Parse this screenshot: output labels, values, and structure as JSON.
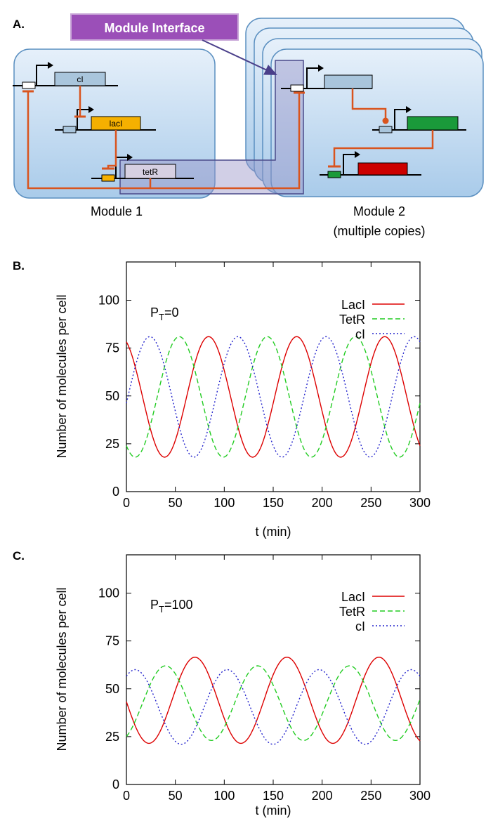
{
  "panels": {
    "a": {
      "label": "A.",
      "module_interface_label": "Module Interface",
      "module1": {
        "title": "Module 1",
        "genes": [
          "cI",
          "lacI",
          "tetR"
        ]
      },
      "module2": {
        "title": "Module 2",
        "subtitle": "(multiple copies)"
      }
    },
    "b": {
      "label": "B.",
      "annotation": "P",
      "annotation_sub": "T",
      "annotation_value": "=0"
    },
    "c": {
      "label": "C.",
      "annotation": "P",
      "annotation_sub": "T",
      "annotation_value": "=100"
    }
  },
  "colors": {
    "module_box": "#bcd8f0",
    "module_border": "#5a8fc0",
    "interface_purple": "#9b4fb8",
    "repression_orange": "#d9541e",
    "laci": "#dd0000",
    "tetr": "#22cc22",
    "ci": "#2222cc",
    "gene_ci": "#a9c5dc",
    "gene_laci": "#f5b000",
    "gene_tetr": "#d6d0e2",
    "gene_green": "#1a9a3a",
    "gene_red": "#cc0000"
  },
  "chart_data": [
    {
      "type": "line",
      "panel": "B",
      "xlabel": "t (min)",
      "ylabel": "Number of molecules per cell",
      "xlim": [
        0,
        300
      ],
      "ylim": [
        0,
        120
      ],
      "xticks": [
        0,
        50,
        100,
        150,
        200,
        250,
        300
      ],
      "yticks": [
        0,
        25,
        50,
        75,
        100
      ],
      "legend": "top-right",
      "series": [
        {
          "name": "LacI",
          "style": "solid",
          "mean": 49.5,
          "amplitude": 31.5,
          "period": 90,
          "peak_t": 84,
          "t0": 0
        },
        {
          "name": "TetR",
          "style": "dashed",
          "mean": 49.5,
          "amplitude": 31.5,
          "period": 90,
          "peak_t": 54,
          "t0": 0
        },
        {
          "name": "cI",
          "style": "dotted",
          "mean": 49.5,
          "amplitude": 31.5,
          "period": 90,
          "peak_t": 24,
          "t0": 0
        }
      ]
    },
    {
      "type": "line",
      "panel": "C",
      "xlabel": "t (min)",
      "ylabel": "Number of molecules per cell",
      "xlim": [
        0,
        300
      ],
      "ylim": [
        0,
        120
      ],
      "xticks": [
        0,
        50,
        100,
        150,
        200,
        250,
        300
      ],
      "yticks": [
        0,
        25,
        50,
        75,
        100
      ],
      "legend": "top-right",
      "series": [
        {
          "name": "LacI",
          "style": "solid",
          "mean": 44,
          "amplitude": 22.5,
          "period": 94,
          "peak_t": 70,
          "t0": 0
        },
        {
          "name": "TetR",
          "style": "dashed",
          "mean": 42.5,
          "amplitude": 19.5,
          "period": 94,
          "peak_t": 40,
          "t0": 0
        },
        {
          "name": "cI",
          "style": "dotted",
          "mean": 40.5,
          "amplitude": 19.5,
          "period": 94,
          "peak_t": 9,
          "t0": 0
        }
      ]
    }
  ]
}
